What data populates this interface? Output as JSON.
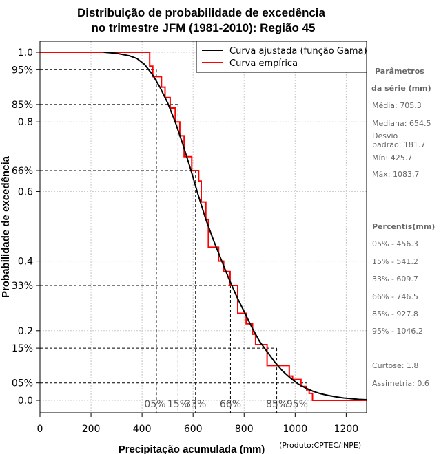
{
  "chart_data": {
    "type": "line",
    "title_line1": "Distribuição de probabilidade de excedência",
    "title_line2": "no trimestre JFM (1981-2010): Região 45",
    "xlabel": "Precipitação acumulada (mm)",
    "ylabel": "Probabilidade de excedência",
    "credit": "(Produto:CPTEC/INPE)",
    "xlim": [
      0,
      1280
    ],
    "ylim": [
      -0.08,
      1.05
    ],
    "x_ticks": [
      0,
      200,
      400,
      600,
      800,
      1000,
      1200
    ],
    "x_tick_labels": [
      "0",
      "200",
      "400",
      "600",
      "800",
      "1000",
      "1200"
    ],
    "y_ticks": [
      {
        "value": 1.0,
        "label": "1.0"
      },
      {
        "value": 0.95,
        "label": "95%"
      },
      {
        "value": 0.85,
        "label": "85%"
      },
      {
        "value": 0.8,
        "label": "0.8"
      },
      {
        "value": 0.66,
        "label": "66%"
      },
      {
        "value": 0.6,
        "label": "0.6"
      },
      {
        "value": 0.4,
        "label": "0.4"
      },
      {
        "value": 0.33,
        "label": "33%"
      },
      {
        "value": 0.2,
        "label": "0.2"
      },
      {
        "value": 0.15,
        "label": "15%"
      },
      {
        "value": 0.05,
        "label": "05%"
      },
      {
        "value": 0.0,
        "label": "0.0"
      }
    ],
    "grid": true,
    "legend_position": "top-right",
    "legend": [
      {
        "name": "Curva ajustada (função Gama)",
        "color": "#000000"
      },
      {
        "name": "Curva empírica",
        "color": "#ff0000"
      }
    ],
    "fitted_curve": {
      "name": "Curva ajustada (função Gama)",
      "color": "#000000",
      "x": [
        250,
        300,
        350,
        380,
        410,
        440,
        470,
        500,
        530,
        560,
        590,
        620,
        650,
        680,
        710,
        740,
        770,
        800,
        830,
        860,
        890,
        920,
        950,
        980,
        1010,
        1040,
        1070,
        1100,
        1130,
        1160,
        1190,
        1220,
        1250,
        1280
      ],
      "y": [
        1.0,
        0.997,
        0.99,
        0.982,
        0.965,
        0.937,
        0.9,
        0.855,
        0.8,
        0.735,
        0.665,
        0.59,
        0.52,
        0.46,
        0.405,
        0.35,
        0.3,
        0.255,
        0.21,
        0.17,
        0.14,
        0.11,
        0.085,
        0.065,
        0.048,
        0.036,
        0.026,
        0.019,
        0.014,
        0.01,
        0.007,
        0.005,
        0.003,
        0.002
      ]
    },
    "empirical_curve": {
      "name": "Curva empírica",
      "color": "#ff0000",
      "x": [
        0,
        430,
        430,
        442,
        442,
        476,
        476,
        490,
        490,
        510,
        510,
        530,
        530,
        548,
        548,
        565,
        565,
        595,
        595,
        622,
        622,
        632,
        632,
        650,
        650,
        660,
        660,
        700,
        700,
        720,
        720,
        745,
        745,
        775,
        775,
        808,
        808,
        833,
        833,
        845,
        845,
        890,
        890,
        977,
        977,
        990,
        990,
        1023,
        1023,
        1045,
        1045,
        1055,
        1055,
        1068,
        1068,
        1083,
        1083,
        1280
      ],
      "y": [
        1.0,
        1.0,
        0.96,
        0.96,
        0.93,
        0.93,
        0.9,
        0.9,
        0.87,
        0.87,
        0.84,
        0.84,
        0.8,
        0.8,
        0.76,
        0.76,
        0.7,
        0.7,
        0.66,
        0.66,
        0.63,
        0.63,
        0.57,
        0.57,
        0.52,
        0.52,
        0.44,
        0.44,
        0.4,
        0.4,
        0.37,
        0.37,
        0.33,
        0.33,
        0.25,
        0.25,
        0.22,
        0.22,
        0.19,
        0.19,
        0.16,
        0.16,
        0.1,
        0.1,
        0.07,
        0.07,
        0.06,
        0.06,
        0.04,
        0.04,
        0.03,
        0.03,
        0.02,
        0.02,
        0.0,
        0.0,
        0.0,
        0.0
      ]
    },
    "percentile_markers": [
      {
        "label": "05%",
        "x": 456.3,
        "y": 0.95
      },
      {
        "label": "15%",
        "x": 541.2,
        "y": 0.85
      },
      {
        "label": "33%",
        "x": 609.7,
        "y": 0.66
      },
      {
        "label": "66%",
        "x": 746.5,
        "y": 0.33
      },
      {
        "label": "85%",
        "x": 927.8,
        "y": 0.15
      },
      {
        "label": "95%",
        "x": 1046.2,
        "y": 0.05
      }
    ]
  },
  "sidebar": {
    "params_title_1": "Parâmetros",
    "params_title_2": "da série  (mm)",
    "media": "Média: 705.3",
    "mediana": "Mediana: 654.5",
    "desvio_1": "Desvio",
    "desvio_2": "padrão: 181.7",
    "min": "Mín: 425.7",
    "max": "Máx: 1083.7",
    "percentis_title": "Percentis(mm)",
    "p05": "05% - 456.3",
    "p15": "15% - 541.2",
    "p33": "33% - 609.7",
    "p66": "66% - 746.5",
    "p85": "85% - 927.8",
    "p95": "95% - 1046.2",
    "curtose": "Curtose: 1.8",
    "assimetria": "Assimetria: 0.6"
  }
}
